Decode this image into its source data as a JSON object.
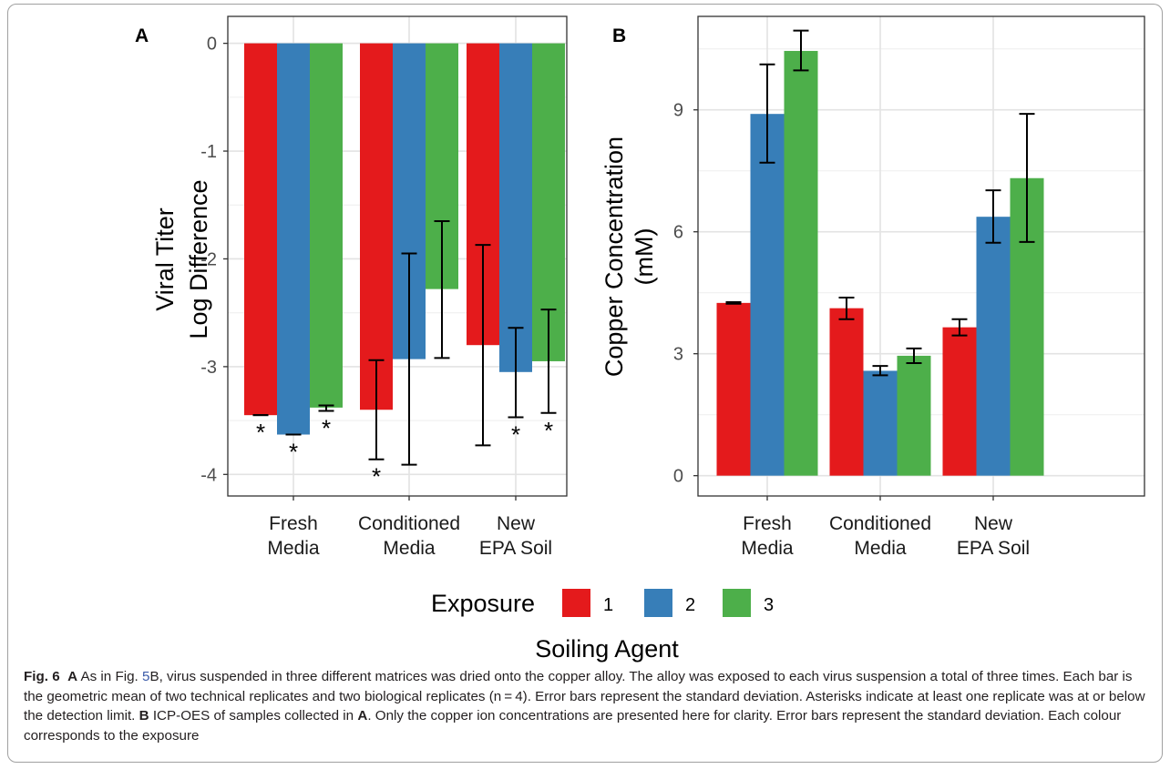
{
  "chart_data": [
    {
      "panel_label": "A",
      "type": "bar",
      "ylabel": [
        "Viral Titer",
        "Log Difference"
      ],
      "ylim": [
        -4.2,
        0.25
      ],
      "yticks": [
        0,
        -1,
        -2,
        -3,
        -4
      ],
      "ytick_labels": [
        "0",
        "-1",
        "-2",
        "-3",
        "-4"
      ],
      "categories": [
        [
          "Fresh",
          "Media"
        ],
        [
          "Conditioned",
          "Media"
        ],
        [
          "New",
          "EPA Soil"
        ]
      ],
      "series": [
        {
          "name": "1",
          "color": "#e41a1c",
          "values": [
            -3.45,
            -3.4,
            -2.8
          ],
          "err_low": [
            -3.45,
            -3.86,
            -3.73
          ],
          "err_high": [
            -3.45,
            -2.94,
            -1.87
          ],
          "asterisk": [
            true,
            true,
            false
          ]
        },
        {
          "name": "2",
          "color": "#377eb8",
          "values": [
            -3.63,
            -2.93,
            -3.05
          ],
          "err_low": [
            -3.63,
            -3.91,
            -3.47
          ],
          "err_high": [
            -3.63,
            -1.95,
            -2.64
          ],
          "asterisk": [
            true,
            false,
            true
          ]
        },
        {
          "name": "3",
          "color": "#4daf4a",
          "values": [
            -3.38,
            -2.28,
            -2.95
          ],
          "err_low": [
            -3.41,
            -2.92,
            -3.43
          ],
          "err_high": [
            -3.36,
            -1.65,
            -2.47
          ],
          "asterisk": [
            true,
            false,
            true
          ]
        }
      ],
      "asterisk_symbol": "*",
      "grid": true
    },
    {
      "panel_label": "B",
      "type": "bar",
      "ylabel": [
        "Copper Concentration",
        "(mM)"
      ],
      "ylim": [
        -0.5,
        11.3
      ],
      "yticks": [
        0,
        3,
        6,
        9
      ],
      "ytick_labels": [
        "0",
        "3",
        "6",
        "9"
      ],
      "categories": [
        [
          "Fresh",
          "Media"
        ],
        [
          "Conditioned",
          "Media"
        ],
        [
          "New",
          "EPA Soil"
        ]
      ],
      "series": [
        {
          "name": "1",
          "color": "#e41a1c",
          "values": [
            4.25,
            4.12,
            3.65
          ],
          "err_low": [
            4.23,
            3.85,
            3.45
          ],
          "err_high": [
            4.27,
            4.38,
            3.85
          ]
        },
        {
          "name": "2",
          "color": "#377eb8",
          "values": [
            8.9,
            2.58,
            6.37
          ],
          "err_low": [
            7.7,
            2.47,
            5.73
          ],
          "err_high": [
            10.12,
            2.7,
            7.02
          ]
        },
        {
          "name": "3",
          "color": "#4daf4a",
          "values": [
            10.45,
            2.95,
            7.32
          ],
          "err_low": [
            9.97,
            2.77,
            5.75
          ],
          "err_high": [
            10.95,
            3.13,
            8.9
          ]
        }
      ],
      "grid": true
    }
  ],
  "legend": {
    "title": "Exposure",
    "entries": [
      {
        "label": "1",
        "color": "#e41a1c"
      },
      {
        "label": "2",
        "color": "#377eb8"
      },
      {
        "label": "3",
        "color": "#4daf4a"
      }
    ]
  },
  "xlabel": "Soiling Agent",
  "caption": {
    "fig": "Fig. 6",
    "t1_label": "A",
    "t1": " As in Fig. ",
    "t1_link": "5",
    "t1b": "B, virus suspended in three different matrices was dried onto the copper alloy. The alloy was exposed to each virus suspension a total of three times. Each bar is the geometric mean of two technical replicates and two biological replicates (n = 4). Error bars represent the standard deviation. Asterisks indicate at least one replicate was at or below the detection limit. ",
    "t2_label": "B",
    "t2": " ICP-OES of samples collected in ",
    "t2_ref": "A",
    "t3": ". Only the copper ion concentrations are presented here for clarity. Error bars represent the standard deviation. Each colour corresponds to the exposure"
  }
}
